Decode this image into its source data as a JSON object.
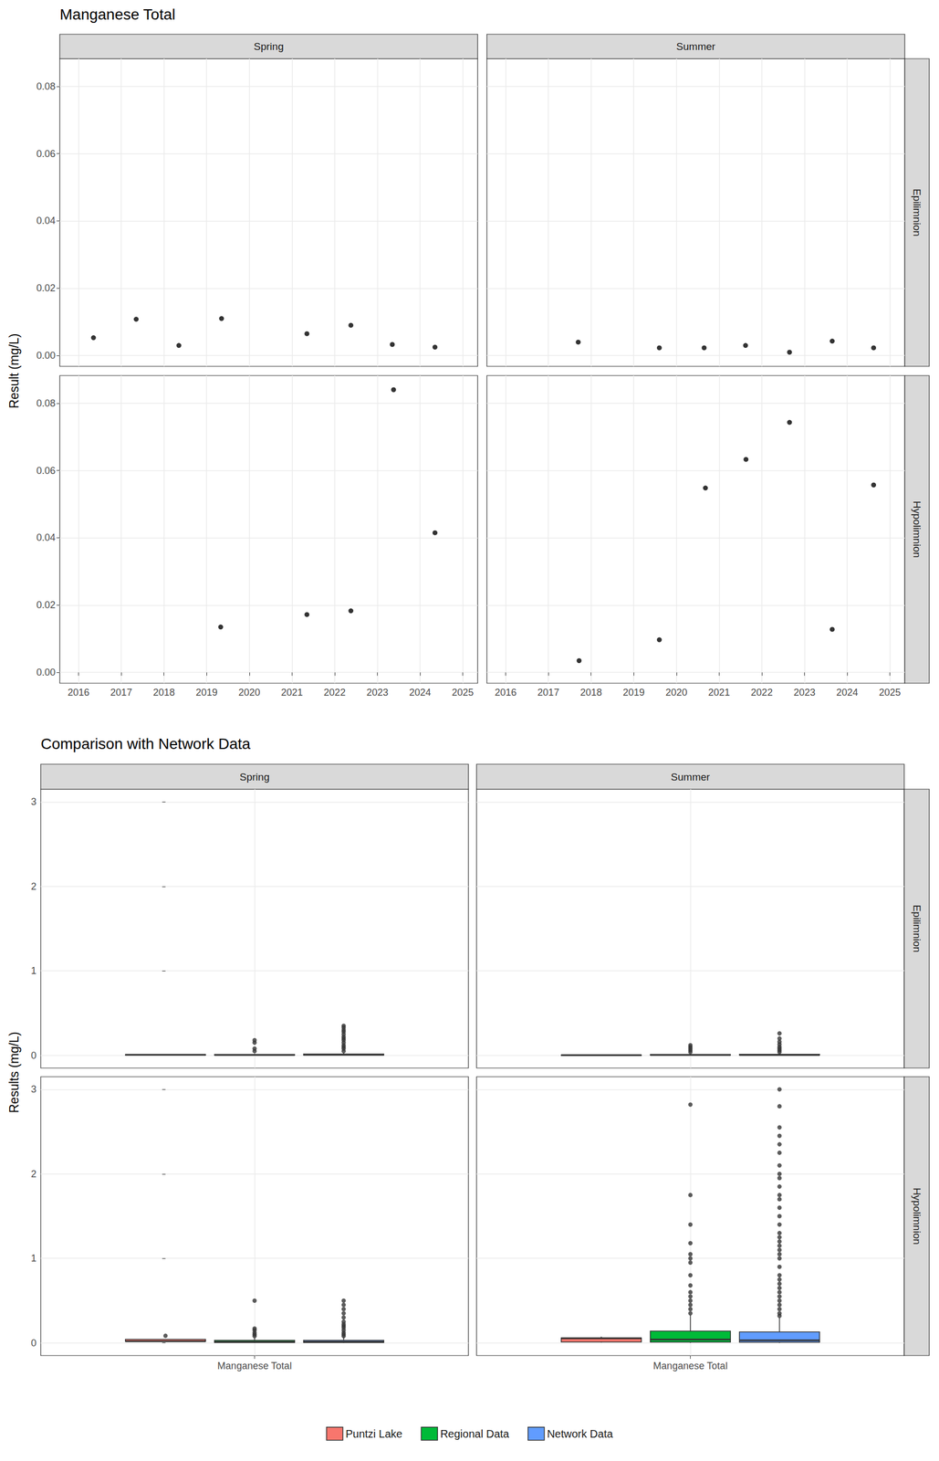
{
  "chart_data": [
    {
      "type": "scatter",
      "title": "Manganese Total",
      "y_label": "Result (mg/L)",
      "columns": [
        "Spring",
        "Summer"
      ],
      "rows": [
        "Epilimnion",
        "Hypolimnion"
      ],
      "xlim": [
        2015.56,
        2025.35
      ],
      "xticks": [
        2016,
        2017,
        2018,
        2019,
        2020,
        2021,
        2022,
        2023,
        2024,
        2025
      ],
      "ylim": [
        -0.0032,
        0.0882
      ],
      "yticks": [
        {
          "value": 0,
          "label": "0.00"
        },
        {
          "value": 0.02,
          "label": "0.02"
        },
        {
          "value": 0.04,
          "label": "0.04"
        },
        {
          "value": 0.06,
          "label": "0.06"
        },
        {
          "value": 0.08,
          "label": "0.08"
        }
      ],
      "grid": true,
      "color": "#000000",
      "panels": [
        {
          "column": "Spring",
          "row": "Epilimnion",
          "x": [
            2016.35,
            2017.35,
            2018.35,
            2019.35,
            2021.35,
            2022.38,
            2023.35,
            2024.35
          ],
          "values": [
            0.0053,
            0.0108,
            0.003,
            0.011,
            0.0065,
            0.009,
            0.0033,
            0.0025
          ]
        },
        {
          "column": "Summer",
          "row": "Epilimnion",
          "x": [
            2017.7,
            2019.6,
            2020.65,
            2021.62,
            2022.65,
            2023.65,
            2024.62
          ],
          "values": [
            0.004,
            0.0023,
            0.0023,
            0.003,
            0.001,
            0.0043,
            0.0023
          ]
        },
        {
          "column": "Spring",
          "row": "Hypolimnion",
          "x": [
            2019.33,
            2021.35,
            2022.38,
            2023.38,
            2024.35
          ],
          "values": [
            0.0135,
            0.0172,
            0.0183,
            0.084,
            0.0415
          ]
        },
        {
          "column": "Summer",
          "row": "Hypolimnion",
          "x": [
            2017.72,
            2019.6,
            2020.68,
            2021.63,
            2022.65,
            2023.65,
            2024.62
          ],
          "values": [
            0.0035,
            0.0097,
            0.0548,
            0.0633,
            0.0743,
            0.0128,
            0.0557
          ]
        }
      ]
    },
    {
      "type": "boxplot",
      "title": "Comparison with Network Data",
      "y_label": "Results (mg/L)",
      "columns": [
        "Spring",
        "Summer"
      ],
      "rows": [
        "Epilimnion",
        "Hypolimnion"
      ],
      "categories": [
        "Manganese Total"
      ],
      "ylim": [
        -0.15,
        3.15
      ],
      "yticks": [
        0,
        1,
        2,
        3
      ],
      "grid": true,
      "legend": "bottom",
      "series": [
        {
          "name": "Puntzi Lake",
          "color": "#F8766D"
        },
        {
          "name": "Regional Data",
          "color": "#00BA38"
        },
        {
          "name": "Network Data",
          "color": "#619CFF"
        }
      ],
      "panels": [
        {
          "column": "Spring",
          "row": "Epilimnion",
          "boxes": [
            {
              "name": "Puntzi Lake",
              "box": [
                0.0025,
                0.0032,
                0.0059,
                0.0094,
                0.011
              ],
              "outliers": []
            },
            {
              "name": "Regional Data",
              "box": [
                0,
                0.002,
                0.005,
                0.01,
                0.02
              ],
              "outliers": [
                0.05,
                0.08,
                0.15,
                0.18
              ]
            },
            {
              "name": "Network Data",
              "box": [
                0,
                0.003,
                0.006,
                0.015,
                0.03
              ],
              "outliers": [
                0.05,
                0.08,
                0.1,
                0.12,
                0.15,
                0.18,
                0.2,
                0.22,
                0.25,
                0.28,
                0.3,
                0.33,
                0.35
              ]
            }
          ]
        },
        {
          "column": "Summer",
          "row": "Epilimnion",
          "boxes": [
            {
              "name": "Puntzi Lake",
              "box": [
                0.001,
                0.0023,
                0.0023,
                0.0035,
                0.0043
              ],
              "outliers": []
            },
            {
              "name": "Regional Data",
              "box": [
                0,
                0.002,
                0.005,
                0.01,
                0.02
              ],
              "outliers": [
                0.04,
                0.06,
                0.08,
                0.1,
                0.12
              ]
            },
            {
              "name": "Network Data",
              "box": [
                0,
                0.002,
                0.005,
                0.012,
                0.025
              ],
              "outliers": [
                0.04,
                0.06,
                0.08,
                0.1,
                0.13,
                0.16,
                0.2,
                0.26
              ]
            }
          ]
        },
        {
          "column": "Spring",
          "row": "Hypolimnion",
          "boxes": [
            {
              "name": "Puntzi Lake",
              "box": [
                0.0135,
                0.0172,
                0.0183,
                0.0415,
                0.0415
              ],
              "outliers": [
                0.084
              ]
            },
            {
              "name": "Regional Data",
              "box": [
                0,
                0.005,
                0.012,
                0.03,
                0.06
              ],
              "outliers": [
                0.08,
                0.1,
                0.12,
                0.15,
                0.17,
                0.5
              ]
            },
            {
              "name": "Network Data",
              "box": [
                0,
                0.005,
                0.012,
                0.03,
                0.07
              ],
              "outliers": [
                0.08,
                0.1,
                0.12,
                0.15,
                0.18,
                0.2,
                0.22,
                0.25,
                0.3,
                0.35,
                0.4,
                0.45,
                0.5
              ]
            }
          ]
        },
        {
          "column": "Summer",
          "row": "Hypolimnion",
          "boxes": [
            {
              "name": "Puntzi Lake",
              "box": [
                0.0035,
                0.0113,
                0.0548,
                0.0595,
                0.0743
              ],
              "outliers": []
            },
            {
              "name": "Regional Data",
              "box": [
                0,
                0.01,
                0.04,
                0.14,
                0.33
              ],
              "outliers": [
                0.35,
                0.4,
                0.45,
                0.5,
                0.55,
                0.6,
                0.68,
                0.8,
                0.95,
                1.0,
                1.05,
                1.18,
                1.4,
                1.75,
                2.82
              ]
            },
            {
              "name": "Network Data",
              "box": [
                0,
                0.008,
                0.03,
                0.13,
                0.3
              ],
              "outliers": [
                0.32,
                0.35,
                0.4,
                0.45,
                0.5,
                0.55,
                0.6,
                0.65,
                0.7,
                0.75,
                0.8,
                0.9,
                1.0,
                1.05,
                1.1,
                1.15,
                1.2,
                1.25,
                1.3,
                1.4,
                1.5,
                1.6,
                1.7,
                1.75,
                1.85,
                1.95,
                2.0,
                2.1,
                2.25,
                2.35,
                2.45,
                2.55,
                2.8,
                3.0
              ]
            }
          ]
        }
      ]
    }
  ]
}
